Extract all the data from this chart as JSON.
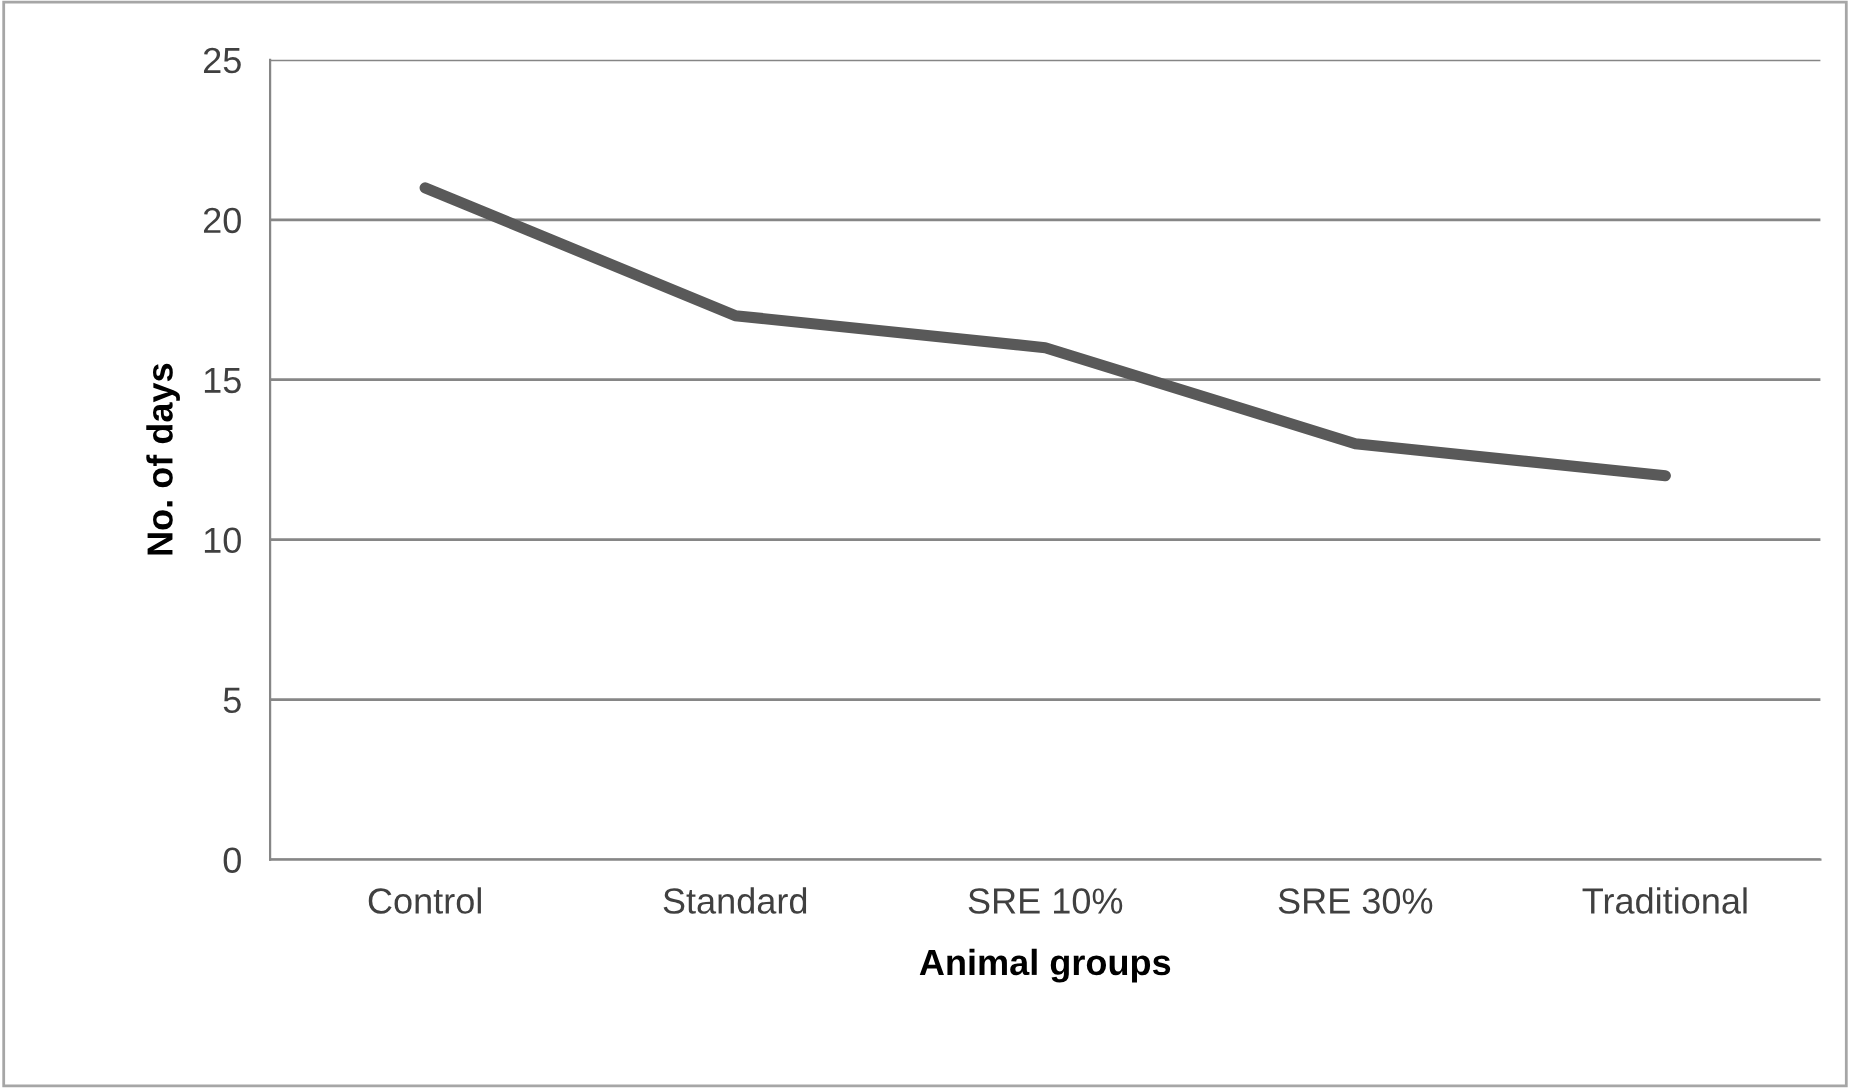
{
  "chart_data": {
    "type": "line",
    "xlabel": "Animal groups",
    "ylabel": "No. of days",
    "categories": [
      "Control",
      "Standard",
      "SRE 10%",
      "SRE 30%",
      "Traditional"
    ],
    "series": [
      {
        "color": "#595959",
        "values": [
          21,
          17,
          16,
          13,
          12
        ]
      }
    ],
    "ylim": [
      0,
      25
    ],
    "yticks": [
      0,
      5,
      10,
      15,
      20,
      25
    ],
    "grid": "y",
    "legend": false,
    "marker": "none",
    "line_style": "solid"
  }
}
